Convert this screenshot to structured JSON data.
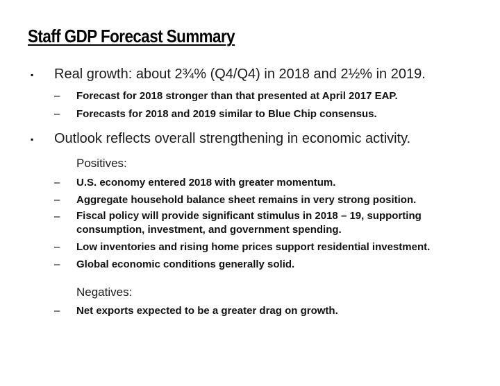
{
  "title": "Staff GDP Forecast Summary",
  "bullet_glyph": "▪",
  "dash_glyph": "–",
  "sections": [
    {
      "text": "Real growth: about 2¾% (Q4/Q4) in 2018 and 2½% in 2019.",
      "items": [
        "Forecast for 2018 stronger than that presented at April 2017 EAP.",
        "Forecasts for 2018 and 2019 similar to Blue Chip consensus."
      ]
    },
    {
      "text": "Outlook reflects overall strengthening in economic activity.",
      "positives_label": "Positives:",
      "positives": [
        "U.S. economy entered 2018 with greater momentum.",
        "Aggregate household balance sheet remains in very strong position.",
        "Fiscal policy will provide significant stimulus in 2018 – 19, supporting consumption, investment, and government spending.",
        "Low inventories and rising home prices support residential investment.",
        "Global economic conditions generally solid."
      ],
      "negatives_label": "Negatives:",
      "negatives": [
        "Net exports expected to be a greater drag on growth."
      ]
    }
  ]
}
